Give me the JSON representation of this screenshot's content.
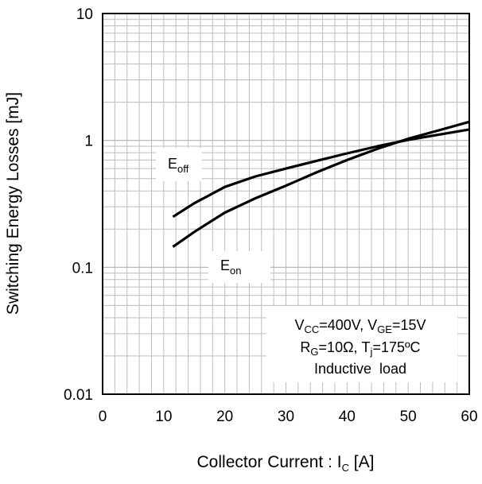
{
  "chart_data": {
    "type": "line",
    "xlabel": {
      "main": "Collector Current : I",
      "sub": "C",
      "unit": " [A]"
    },
    "ylabel": "Switching Energy Losses [mJ]",
    "xlim": [
      0,
      60
    ],
    "ylim": [
      0.01,
      10
    ],
    "yscale": "log",
    "grid": true,
    "x_ticks": [
      "0",
      "10",
      "20",
      "30",
      "40",
      "50",
      "60"
    ],
    "y_ticks": [
      "0.01",
      "0.1",
      "1",
      "10"
    ],
    "series": [
      {
        "name": "Eoff",
        "label_main": "E",
        "label_sub": "off",
        "x": [
          11.5,
          15,
          20,
          25,
          30,
          35,
          40,
          45,
          50,
          55,
          60
        ],
        "y": [
          0.25,
          0.32,
          0.43,
          0.52,
          0.6,
          0.69,
          0.79,
          0.9,
          1.01,
          1.11,
          1.22
        ]
      },
      {
        "name": "Eon",
        "label_main": "E",
        "label_sub": "on",
        "x": [
          11.5,
          15,
          20,
          25,
          30,
          35,
          40,
          45,
          50,
          55,
          60
        ],
        "y": [
          0.145,
          0.19,
          0.27,
          0.35,
          0.44,
          0.56,
          0.7,
          0.86,
          1.03,
          1.2,
          1.4
        ]
      }
    ],
    "conditions": {
      "line1": {
        "a_main": "V",
        "a_sub": "CC",
        "a_val": "=400V, ",
        "b_main": "V",
        "b_sub": "GE",
        "b_val": "=15V"
      },
      "line2": {
        "a_main": "R",
        "a_sub": "G",
        "a_val": "=10Ω, ",
        "b_main": "T",
        "b_sub": "j",
        "b_val": "=175ºC"
      },
      "line3": "Inductive  load"
    }
  }
}
